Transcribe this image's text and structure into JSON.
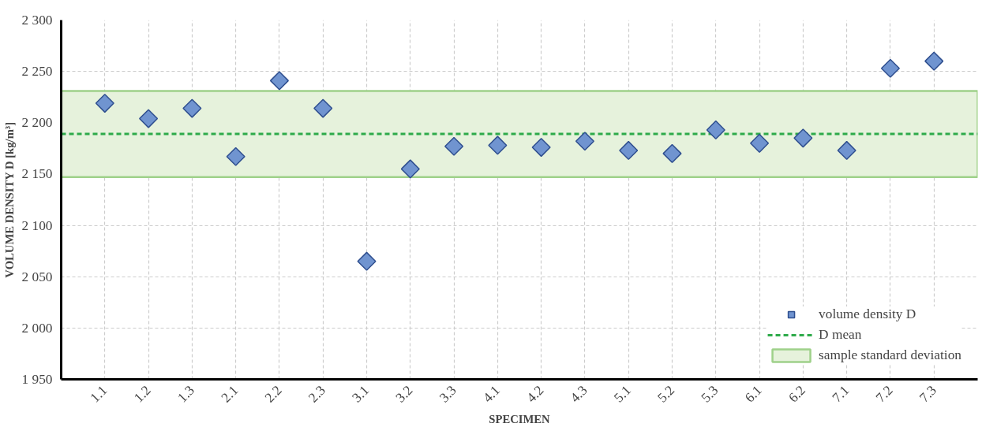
{
  "chart_data": {
    "type": "scatter",
    "xlabel": "SPECIMEN",
    "ylabel": "VOLUME DENSITY D [kg/m³]",
    "categories": [
      "1.1",
      "1.2",
      "1.3",
      "2.1",
      "2.2",
      "2.3",
      "3.1",
      "3.2",
      "3.3",
      "4.1",
      "4.2",
      "4.3",
      "5.1",
      "5.2",
      "5.3",
      "6.1",
      "6.2",
      "7.1",
      "7.2",
      "7.3"
    ],
    "series": [
      {
        "name": "volume density D",
        "color": "#7094d0",
        "values": [
          2219,
          2204,
          2214,
          2167,
          2241,
          2214,
          2065,
          2155,
          2177,
          2178,
          2176,
          2182,
          2173,
          2170,
          2193,
          2180,
          2185,
          2173,
          2253,
          2260
        ]
      }
    ],
    "marker": "diamond",
    "ylim": [
      1950,
      2300
    ],
    "yticks": [
      {
        "value": 1950,
        "label": "1 950"
      },
      {
        "value": 2000,
        "label": "2 000"
      },
      {
        "value": 2050,
        "label": "2 050"
      },
      {
        "value": 2100,
        "label": "2 100"
      },
      {
        "value": 2150,
        "label": "2 150"
      },
      {
        "value": 2200,
        "label": "2 200"
      },
      {
        "value": 2250,
        "label": "2 250"
      },
      {
        "value": 2300,
        "label": "2 300"
      }
    ],
    "ref_lines": [
      {
        "axis": "y",
        "value": 2189,
        "label": "D mean",
        "color": "#2eaa4a",
        "line_style": "dashed"
      }
    ],
    "bands": [
      {
        "axis": "y",
        "from": 2147,
        "to": 2231,
        "label": "sample standard deviation",
        "color": "#e6f2dc"
      }
    ],
    "grid": true,
    "legend": "bottom right"
  }
}
